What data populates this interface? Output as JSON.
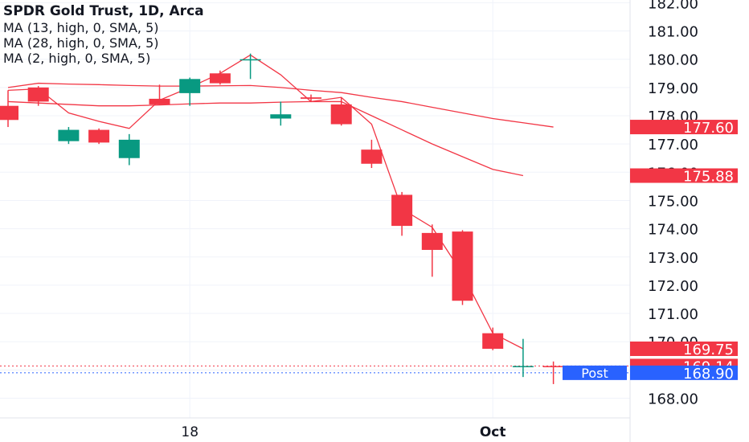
{
  "legend": {
    "title": "SPDR Gold Trust, 1D, Arca",
    "ma1": "MA (13, high, 0, SMA, 5)",
    "ma2": "MA (28, high, 0, SMA, 5)",
    "ma3": "MA (2, high, 0, SMA, 5)"
  },
  "colors": {
    "up": "#089981",
    "down": "#f23645",
    "ma": "#f23645",
    "grid": "#f0f3fa",
    "axis_text": "#131722",
    "post": "#2962ff"
  },
  "chart_data": {
    "type": "candlestick",
    "symbol": "SPDR Gold Trust",
    "interval": "1D",
    "exchange": "Arca",
    "y_ticks": [
      168,
      169,
      170,
      171,
      172,
      173,
      174,
      175,
      176,
      177,
      178,
      179,
      180,
      181,
      182
    ],
    "y_tick_labels": [
      "168.00",
      "169.00",
      "170.00",
      "171.00",
      "172.00",
      "173.00",
      "174.00",
      "175.00",
      "176.00",
      "177.00",
      "178.00",
      "179.00",
      "180.00",
      "181.00",
      "182.00"
    ],
    "x_labels": [
      {
        "index": 6,
        "label": "18"
      },
      {
        "index": 16,
        "label": "Oct"
      }
    ],
    "candles": [
      {
        "o": 178.35,
        "h": 178.9,
        "l": 177.6,
        "c": 177.85
      },
      {
        "o": 179.0,
        "h": 179.05,
        "l": 178.35,
        "c": 178.5
      },
      {
        "o": 177.1,
        "h": 177.6,
        "l": 177.0,
        "c": 177.5
      },
      {
        "o": 177.5,
        "h": 177.55,
        "l": 177.0,
        "c": 177.05
      },
      {
        "o": 176.5,
        "h": 177.35,
        "l": 176.25,
        "c": 177.15
      },
      {
        "o": 178.6,
        "h": 179.1,
        "l": 178.4,
        "c": 178.4
      },
      {
        "o": 178.8,
        "h": 179.35,
        "l": 178.35,
        "c": 179.3
      },
      {
        "o": 179.5,
        "h": 179.6,
        "l": 179.1,
        "c": 179.15
      },
      {
        "o": 180.0,
        "h": 180.2,
        "l": 179.3,
        "c": 180.0
      },
      {
        "o": 177.9,
        "h": 178.5,
        "l": 177.65,
        "c": 178.05
      },
      {
        "o": 178.65,
        "h": 178.75,
        "l": 178.5,
        "c": 178.6
      },
      {
        "o": 178.4,
        "h": 178.65,
        "l": 177.65,
        "c": 177.7
      },
      {
        "o": 176.8,
        "h": 177.15,
        "l": 176.15,
        "c": 176.3
      },
      {
        "o": 175.2,
        "h": 175.3,
        "l": 173.75,
        "c": 174.1
      },
      {
        "o": 173.85,
        "h": 174.15,
        "l": 172.3,
        "c": 173.25
      },
      {
        "o": 173.9,
        "h": 173.95,
        "l": 171.3,
        "c": 171.45
      },
      {
        "o": 170.3,
        "h": 170.5,
        "l": 169.7,
        "c": 169.75
      },
      {
        "o": 169.14,
        "h": 170.1,
        "l": 168.75,
        "c": 169.14
      },
      {
        "o": 169.14,
        "h": 169.3,
        "l": 168.5,
        "c": 169.14
      }
    ],
    "series": [
      {
        "values": [
          179.0,
          179.15,
          179.12,
          179.1,
          179.07,
          179.05,
          179.05,
          179.06,
          179.07,
          179.0,
          178.9,
          178.82,
          178.65,
          178.5,
          178.3,
          178.1,
          177.9,
          177.75,
          177.6
        ]
      },
      {
        "values": [
          178.5,
          178.45,
          178.4,
          178.35,
          178.35,
          178.38,
          178.42,
          178.45,
          178.45,
          178.48,
          178.5,
          178.5,
          178.0,
          177.5,
          177.0,
          176.55,
          176.1,
          175.88,
          null
        ]
      },
      {
        "values": [
          178.9,
          178.95,
          178.1,
          177.8,
          177.55,
          178.55,
          179.0,
          179.5,
          180.15,
          179.45,
          178.5,
          178.65,
          177.7,
          174.7,
          174.05,
          172.4,
          170.3,
          169.75,
          null
        ]
      }
    ],
    "price_labels": [
      {
        "value": 177.6,
        "label": "177.60"
      },
      {
        "value": 175.88,
        "label": "175.88"
      },
      {
        "value": 169.75,
        "label": "169.75"
      },
      {
        "value": 169.14,
        "label": "169.14"
      },
      {
        "value": 168.9,
        "label": "168.90"
      }
    ],
    "post_label": "Post",
    "dotted_lines": [
      169.14,
      168.9
    ]
  }
}
